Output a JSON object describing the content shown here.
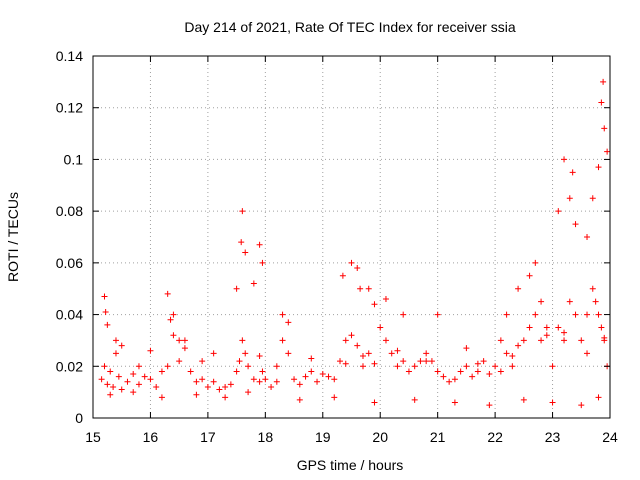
{
  "chart_data": {
    "type": "scatter",
    "title": "Day 214 of 2021, Rate Of TEC Index for receiver ssia",
    "xlabel": "GPS time / hours",
    "ylabel": "ROTI / TECUs",
    "xlim": [
      15,
      24
    ],
    "ylim": [
      0,
      0.14
    ],
    "grid": true,
    "marker": "+",
    "marker_color": "#ff0000",
    "xticks": [
      15,
      16,
      17,
      18,
      19,
      20,
      21,
      22,
      23,
      24
    ],
    "xtick_labels": [
      "15",
      "16",
      "17",
      "18",
      "19",
      "20",
      "21",
      "22",
      "23",
      "24"
    ],
    "yticks": [
      0,
      0.02,
      0.04,
      0.06,
      0.08,
      0.1,
      0.12,
      0.14
    ],
    "ytick_labels": [
      "0",
      "0.02",
      "0.04",
      "0.06",
      "0.08",
      "0.1",
      "0.12",
      "0.14"
    ],
    "series": [
      {
        "name": "ROTI",
        "x": [
          15.15,
          15.2,
          15.25,
          15.3,
          15.35,
          15.4,
          15.45,
          15.5,
          15.6,
          15.7,
          15.8,
          15.9,
          16.0,
          16.1,
          16.2,
          16.3,
          16.35,
          16.4,
          16.5,
          16.6,
          16.7,
          16.8,
          16.9,
          17.0,
          17.1,
          17.2,
          17.3,
          17.4,
          17.5,
          17.55,
          17.6,
          17.65,
          17.7,
          17.8,
          17.9,
          17.95,
          18.0,
          18.1,
          18.2,
          18.3,
          18.4,
          18.5,
          18.6,
          18.7,
          18.8,
          18.9,
          19.0,
          19.1,
          19.2,
          19.3,
          19.4,
          19.5,
          19.6,
          19.7,
          19.8,
          19.9,
          20.0,
          20.1,
          20.2,
          20.3,
          20.4,
          20.5,
          20.6,
          20.7,
          20.8,
          20.9,
          21.0,
          21.1,
          21.2,
          21.3,
          21.4,
          21.5,
          21.6,
          21.7,
          21.8,
          21.9,
          22.0,
          22.1,
          22.2,
          22.3,
          22.4,
          22.5,
          22.6,
          22.7,
          22.8,
          22.9,
          23.0,
          23.1,
          23.2,
          23.3,
          23.4,
          23.5,
          23.6,
          23.7,
          23.75,
          23.8,
          23.85,
          23.9,
          23.95,
          15.2,
          15.22,
          15.25,
          15.4,
          16.3,
          16.4,
          16.5,
          17.5,
          17.58,
          17.6,
          17.65,
          17.8,
          17.9,
          17.95,
          18.3,
          18.4,
          19.35,
          19.5,
          19.6,
          19.65,
          19.8,
          19.9,
          20.1,
          20.4,
          21.0,
          22.2,
          22.4,
          22.6,
          22.7,
          22.8,
          23.1,
          23.2,
          23.3,
          23.35,
          23.4,
          23.6,
          23.7,
          23.8,
          23.85,
          23.88,
          23.9,
          23.95,
          15.3,
          15.7,
          16.2,
          16.8,
          17.3,
          17.7,
          18.6,
          19.2,
          19.9,
          20.6,
          21.3,
          21.9,
          22.5,
          23.0,
          23.5,
          23.8,
          15.5,
          16.0,
          16.6,
          17.1,
          17.9,
          18.8,
          19.7,
          20.3,
          21.5,
          22.1,
          22.9,
          23.6,
          15.8,
          16.9,
          18.2,
          19.4,
          20.8,
          21.7,
          22.3,
          23.2,
          23.9
        ],
        "y": [
          0.015,
          0.02,
          0.013,
          0.018,
          0.012,
          0.025,
          0.016,
          0.011,
          0.014,
          0.017,
          0.013,
          0.016,
          0.015,
          0.012,
          0.018,
          0.02,
          0.038,
          0.032,
          0.022,
          0.027,
          0.018,
          0.014,
          0.015,
          0.012,
          0.014,
          0.011,
          0.012,
          0.013,
          0.018,
          0.022,
          0.03,
          0.025,
          0.02,
          0.015,
          0.014,
          0.018,
          0.015,
          0.012,
          0.014,
          0.03,
          0.025,
          0.015,
          0.013,
          0.016,
          0.018,
          0.014,
          0.017,
          0.016,
          0.015,
          0.022,
          0.03,
          0.032,
          0.028,
          0.02,
          0.025,
          0.021,
          0.035,
          0.03,
          0.025,
          0.02,
          0.022,
          0.018,
          0.02,
          0.022,
          0.025,
          0.022,
          0.018,
          0.016,
          0.014,
          0.015,
          0.018,
          0.02,
          0.016,
          0.018,
          0.022,
          0.017,
          0.02,
          0.018,
          0.025,
          0.02,
          0.028,
          0.03,
          0.035,
          0.04,
          0.03,
          0.032,
          0.02,
          0.035,
          0.03,
          0.045,
          0.04,
          0.03,
          0.025,
          0.05,
          0.045,
          0.04,
          0.035,
          0.03,
          0.02,
          0.047,
          0.041,
          0.036,
          0.03,
          0.048,
          0.04,
          0.03,
          0.05,
          0.068,
          0.08,
          0.064,
          0.052,
          0.067,
          0.06,
          0.04,
          0.037,
          0.055,
          0.06,
          0.058,
          0.05,
          0.05,
          0.044,
          0.046,
          0.04,
          0.04,
          0.04,
          0.05,
          0.055,
          0.06,
          0.045,
          0.08,
          0.1,
          0.085,
          0.095,
          0.075,
          0.07,
          0.085,
          0.097,
          0.122,
          0.13,
          0.112,
          0.103,
          0.009,
          0.01,
          0.008,
          0.009,
          0.008,
          0.01,
          0.007,
          0.008,
          0.006,
          0.007,
          0.006,
          0.005,
          0.007,
          0.006,
          0.005,
          0.008,
          0.028,
          0.026,
          0.03,
          0.025,
          0.024,
          0.023,
          0.024,
          0.026,
          0.027,
          0.03,
          0.035,
          0.04,
          0.02,
          0.022,
          0.02,
          0.021,
          0.022,
          0.021,
          0.024,
          0.033,
          0.031
        ]
      }
    ]
  }
}
